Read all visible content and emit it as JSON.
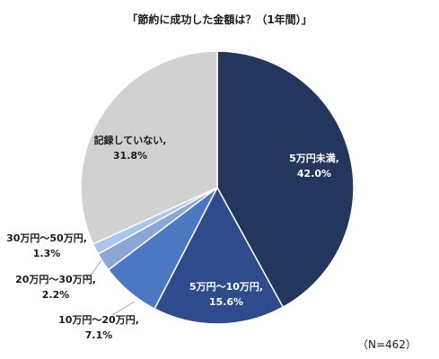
{
  "chart_data": {
    "type": "pie",
    "title": "「節約に成功した金額は？（1年間）」",
    "note": "（N=462）",
    "slices": [
      {
        "label": "5万円未満,",
        "value_label": "42.0%",
        "value": 42.0,
        "color": "#22365e"
      },
      {
        "label": "5万円～10万円,",
        "value_label": "15.6%",
        "value": 15.6,
        "color": "#2e4b8d"
      },
      {
        "label": "10万円～20万円,",
        "value_label": "7.1%",
        "value": 7.1,
        "color": "#4a78c2"
      },
      {
        "label": "20万円～30万円,",
        "value_label": "2.2%",
        "value": 2.2,
        "color": "#8ca6d6"
      },
      {
        "label": "30万円～50万円,",
        "value_label": "1.3%",
        "value": 1.3,
        "color": "#a9c6ef"
      },
      {
        "label": "記録していない,",
        "value_label": "31.8%",
        "value": 31.8,
        "color": "#d2d1d1"
      }
    ]
  }
}
